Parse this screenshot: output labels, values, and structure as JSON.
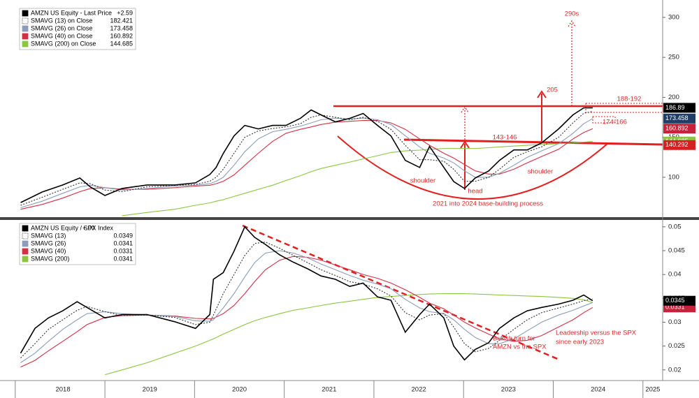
{
  "chart_data": [
    {
      "type": "line",
      "title": "AMZN US Equity - Last Price",
      "change": "+2.59",
      "x": [
        2018.06,
        2018.3,
        2018.53,
        2018.72,
        2018.84,
        2019.0,
        2019.19,
        2019.47,
        2019.78,
        2020.01,
        2020.17,
        2020.24,
        2020.32,
        2020.44,
        2020.56,
        2020.71,
        2020.87,
        2021.02,
        2021.18,
        2021.3,
        2021.41,
        2021.57,
        2021.73,
        2021.88,
        2022.04,
        2022.19,
        2022.35,
        2022.51,
        2022.62,
        2022.78,
        2022.89,
        2023.01,
        2023.13,
        2023.28,
        2023.4,
        2023.56,
        2023.71,
        2023.87,
        2024.06,
        2024.22,
        2024.34,
        2024.44
      ],
      "series": [
        {
          "name": "AMZN US Equity - Last Price",
          "color": "#000000",
          "dashed": false,
          "values": [
            68.4,
            81.6,
            90.4,
            99.1,
            87.7,
            77.2,
            86.0,
            90.4,
            90.4,
            93.0,
            103.5,
            112.3,
            129.8,
            151.8,
            164.9,
            160.5,
            164.9,
            164.9,
            173.7,
            184.2,
            178.1,
            169.3,
            173.7,
            179.8,
            164.9,
            151.8,
            121.1,
            112.3,
            138.6,
            112.3,
            94.7,
            86.0,
            99.1,
            107.9,
            121.1,
            134.2,
            134.2,
            143.0,
            160.5,
            178.1,
            186.8,
            186.89
          ]
        },
        {
          "name": "SMAVG (13)  on Close",
          "color": "#333333",
          "dashed": true,
          "values": [
            65,
            75,
            85,
            93,
            92,
            84,
            82,
            88,
            90,
            91,
            95,
            100,
            110,
            130,
            150,
            158,
            161,
            163,
            167,
            175,
            178,
            175,
            172,
            175,
            170,
            160,
            140,
            122,
            122,
            120,
            110,
            95,
            95,
            100,
            110,
            125,
            132,
            138,
            150,
            168,
            180,
            182.421
          ]
        },
        {
          "name": "SMAVG (26)  on Close",
          "color": "#8b9dbb",
          "dashed": false,
          "values": [
            62,
            70,
            80,
            88,
            90,
            87,
            84,
            86,
            89,
            90,
            92,
            95,
            100,
            115,
            132,
            148,
            157,
            160,
            164,
            168,
            172,
            174,
            173,
            174,
            172,
            166,
            152,
            138,
            130,
            124,
            118,
            108,
            100,
            100,
            105,
            115,
            125,
            133,
            142,
            155,
            167,
            173.458
          ]
        },
        {
          "name": "SMAVG (40)  on Close",
          "color": "#d32f45",
          "dashed": false,
          "values": [
            60,
            66,
            74,
            82,
            86,
            87,
            85,
            85,
            87,
            89,
            90,
            92,
            95,
            103,
            115,
            130,
            145,
            155,
            160,
            163,
            166,
            169,
            170,
            171,
            171,
            168,
            160,
            148,
            140,
            130,
            124,
            116,
            108,
            104,
            104,
            110,
            118,
            126,
            135,
            148,
            156,
            160.892
          ]
        },
        {
          "name": "SMAVG (200)  on Close",
          "color": "#8cc63f",
          "dashed": false,
          "values": [
            null,
            null,
            null,
            null,
            null,
            null,
            52,
            56,
            60,
            65,
            68,
            70,
            72,
            76,
            80,
            85,
            90,
            96,
            102,
            107,
            111,
            115,
            119,
            123,
            127,
            131,
            133,
            134,
            135,
            136,
            136,
            136,
            136,
            137,
            138,
            139,
            140,
            141,
            142,
            143,
            144,
            144.685
          ]
        }
      ],
      "trend_label": 140.292,
      "xlim": [
        2017.83,
        2025.22
      ],
      "ylim": [
        51,
        313
      ],
      "yticks": [
        100,
        150,
        200,
        250,
        300
      ],
      "annotations": [
        "290s",
        "205",
        "188-192",
        "174-166",
        "143-146",
        "shoulder",
        "shoulder",
        "head",
        "2021 into 2024 base-building process"
      ]
    },
    {
      "type": "line",
      "title": "AMZN US Equity / SPX Index",
      "change": "+.00",
      "x": [
        2018.06,
        2018.22,
        2018.37,
        2018.53,
        2018.69,
        2018.8,
        2019.0,
        2019.19,
        2019.47,
        2019.78,
        2020.01,
        2020.17,
        2020.21,
        2020.32,
        2020.44,
        2020.56,
        2020.67,
        2020.79,
        2020.95,
        2021.1,
        2021.26,
        2021.41,
        2021.57,
        2021.73,
        2021.88,
        2022.04,
        2022.19,
        2022.35,
        2022.51,
        2022.62,
        2022.78,
        2022.89,
        2023.01,
        2023.13,
        2023.28,
        2023.4,
        2023.56,
        2023.71,
        2023.87,
        2024.06,
        2024.22,
        2024.34,
        2024.44
      ],
      "series": [
        {
          "name": "AMZN US Equity / SPX Index",
          "color": "#000000",
          "dashed": false,
          "values": [
            0.0235,
            0.0287,
            0.0309,
            0.0324,
            0.0343,
            0.0331,
            0.0309,
            0.0316,
            0.0316,
            0.0301,
            0.0287,
            0.0316,
            0.039,
            0.0404,
            0.0449,
            0.05,
            0.0478,
            0.0463,
            0.0441,
            0.0426,
            0.0412,
            0.0397,
            0.039,
            0.0375,
            0.0382,
            0.0353,
            0.0346,
            0.0279,
            0.0316,
            0.0338,
            0.0309,
            0.025,
            0.0221,
            0.0243,
            0.0257,
            0.0287,
            0.0309,
            0.0324,
            0.0331,
            0.0338,
            0.0346,
            0.0357,
            0.0345
          ]
        },
        {
          "name": "SMAVG (13)",
          "color": "#333333",
          "dashed": true,
          "values": [
            0.0225,
            0.0255,
            0.0285,
            0.0305,
            0.0325,
            0.0333,
            0.0322,
            0.0314,
            0.0315,
            0.031,
            0.0295,
            0.03,
            0.0315,
            0.036,
            0.04,
            0.044,
            0.0465,
            0.0468,
            0.0455,
            0.044,
            0.0425,
            0.041,
            0.0398,
            0.0385,
            0.038,
            0.037,
            0.0355,
            0.032,
            0.0305,
            0.0315,
            0.0318,
            0.029,
            0.0255,
            0.0238,
            0.0245,
            0.0262,
            0.0285,
            0.0305,
            0.032,
            0.033,
            0.0338,
            0.0345,
            0.0349
          ]
        },
        {
          "name": "SMAVG (26)",
          "color": "#8b9dbb",
          "dashed": false,
          "values": [
            0.0215,
            0.0235,
            0.026,
            0.0285,
            0.0305,
            0.0318,
            0.0322,
            0.0318,
            0.0315,
            0.0312,
            0.0303,
            0.0302,
            0.0305,
            0.033,
            0.036,
            0.0395,
            0.0425,
            0.0445,
            0.045,
            0.0445,
            0.0435,
            0.0422,
            0.041,
            0.0398,
            0.0388,
            0.038,
            0.037,
            0.0348,
            0.033,
            0.0322,
            0.0318,
            0.0305,
            0.0285,
            0.0268,
            0.0255,
            0.0255,
            0.0265,
            0.0282,
            0.03,
            0.0315,
            0.0325,
            0.0334,
            0.0341
          ]
        },
        {
          "name": "SMAVG (40)",
          "color": "#d32f45",
          "dashed": false,
          "values": [
            0.0206,
            0.022,
            0.024,
            0.026,
            0.028,
            0.0295,
            0.031,
            0.0314,
            0.0315,
            0.0313,
            0.0308,
            0.0307,
            0.0308,
            0.0318,
            0.0335,
            0.036,
            0.0385,
            0.041,
            0.043,
            0.0438,
            0.0436,
            0.043,
            0.042,
            0.041,
            0.04,
            0.0392,
            0.0382,
            0.0368,
            0.0352,
            0.034,
            0.0328,
            0.0315,
            0.03,
            0.0288,
            0.0275,
            0.0265,
            0.026,
            0.0262,
            0.0272,
            0.029,
            0.0305,
            0.032,
            0.0331
          ]
        },
        {
          "name": "SMAVG (200)",
          "color": "#8cc63f",
          "dashed": false,
          "values": [
            null,
            null,
            null,
            null,
            null,
            null,
            0.019,
            0.02,
            0.0215,
            0.0235,
            0.025,
            0.0262,
            0.0265,
            0.0275,
            0.0285,
            0.0295,
            0.0303,
            0.031,
            0.0318,
            0.0325,
            0.033,
            0.0335,
            0.034,
            0.0344,
            0.0348,
            0.0352,
            0.0354,
            0.0356,
            0.0358,
            0.0359,
            0.036,
            0.036,
            0.036,
            0.0359,
            0.0358,
            0.0357,
            0.0356,
            0.0355,
            0.0354,
            0.0352,
            0.035,
            0.0347,
            0.0341
          ]
        }
      ],
      "xlim": [
        2017.83,
        2025.22
      ],
      "ylim": [
        0.0185,
        0.051
      ],
      "yticks": [
        0.02,
        0.025,
        0.03,
        0.035,
        0.04,
        0.045,
        0.05
      ],
      "xticks": [
        {
          "value": 2018,
          "label": "2018"
        },
        {
          "value": 2019,
          "label": "2019"
        },
        {
          "value": 2020,
          "label": "2020"
        },
        {
          "value": 2021,
          "label": "2021"
        },
        {
          "value": 2022,
          "label": "2022"
        },
        {
          "value": 2023,
          "label": "2023"
        },
        {
          "value": 2024,
          "label": "2024"
        },
        {
          "value": 2025,
          "label": "2025"
        }
      ],
      "annotations": [
        "Leadership versus the SPX",
        "since early 2023",
        "Bullish turn for",
        "AMZN vs the SPX"
      ]
    }
  ]
}
